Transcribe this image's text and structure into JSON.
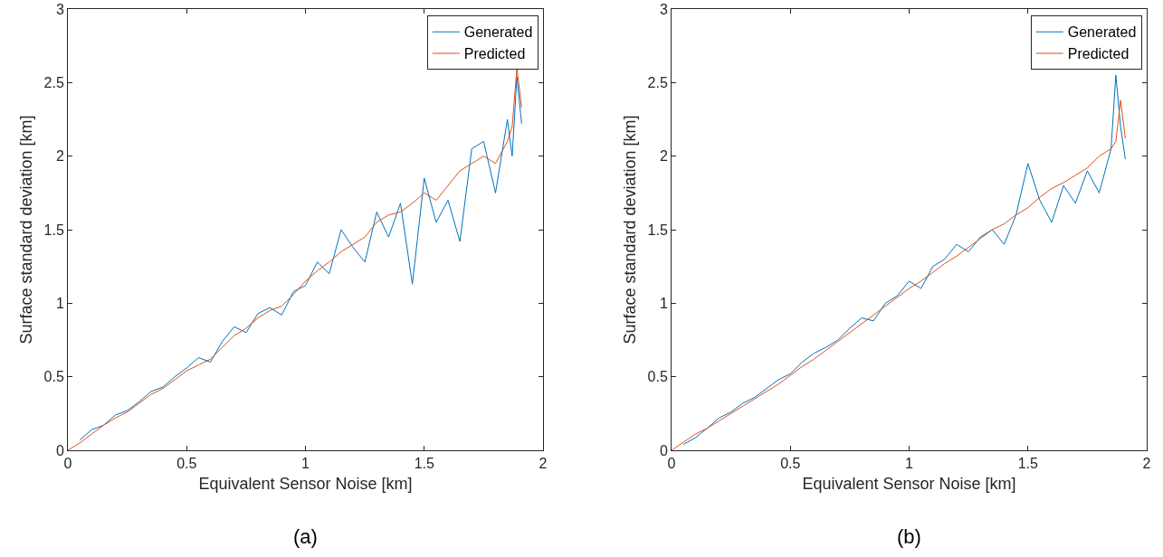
{
  "chart_data": [
    {
      "type": "line",
      "xlabel": "Equivalent Sensor Noise [km]",
      "ylabel": "Surface standard deviation [km]",
      "annotations": [
        "(a)"
      ],
      "xlim": [
        0,
        2
      ],
      "xticks": [
        0,
        0.5,
        1,
        1.5,
        2
      ],
      "ylim": [
        0,
        3
      ],
      "yticks": [
        0,
        0.5,
        1,
        1.5,
        2,
        2.5,
        3
      ],
      "legend": "top right",
      "grid": false,
      "marker": "none",
      "line_style": "solid",
      "x": [
        0,
        0.05,
        0.1,
        0.15,
        0.2,
        0.25,
        0.3,
        0.35,
        0.4,
        0.45,
        0.5,
        0.55,
        0.6,
        0.65,
        0.7,
        0.75,
        0.8,
        0.85,
        0.9,
        0.95,
        1,
        1.05,
        1.1,
        1.15,
        1.2,
        1.25,
        1.3,
        1.35,
        1.4,
        1.45,
        1.5,
        1.55,
        1.6,
        1.65,
        1.7,
        1.75,
        1.8,
        1.85,
        1.87,
        1.89,
        1.91
      ],
      "series": [
        {
          "name": "Generated",
          "color": "#0072bd",
          "values": [
            null,
            0.07,
            0.14,
            0.17,
            0.24,
            0.27,
            0.33,
            0.4,
            0.43,
            0.5,
            0.56,
            0.63,
            0.6,
            0.74,
            0.84,
            0.8,
            0.93,
            0.97,
            0.92,
            1.08,
            1.12,
            1.28,
            1.2,
            1.5,
            1.38,
            1.28,
            1.62,
            1.45,
            1.68,
            1.13,
            1.85,
            1.55,
            1.7,
            1.42,
            2.05,
            2.1,
            1.75,
            2.25,
            2,
            2.54,
            2.22
          ]
        },
        {
          "name": "Predicted",
          "color": "#d95319",
          "values": [
            0,
            0.05,
            0.11,
            0.17,
            0.22,
            0.26,
            0.32,
            0.38,
            0.42,
            0.48,
            0.54,
            0.58,
            0.62,
            0.7,
            0.78,
            0.83,
            0.9,
            0.95,
            0.98,
            1.06,
            1.15,
            1.22,
            1.28,
            1.35,
            1.4,
            1.45,
            1.55,
            1.6,
            1.62,
            1.68,
            1.75,
            1.7,
            1.8,
            1.9,
            1.95,
            2,
            1.95,
            2.1,
            2.2,
            2.6,
            2.33
          ]
        }
      ]
    },
    {
      "type": "line",
      "xlabel": "Equivalent Sensor Noise [km]",
      "ylabel": "Surface standard deviation [km]",
      "annotations": [
        "(b)"
      ],
      "xlim": [
        0,
        2
      ],
      "xticks": [
        0,
        0.5,
        1,
        1.5,
        2
      ],
      "ylim": [
        0,
        3
      ],
      "yticks": [
        0,
        0.5,
        1,
        1.5,
        2,
        2.5,
        3
      ],
      "legend": "top right",
      "grid": false,
      "marker": "none",
      "line_style": "solid",
      "x": [
        0,
        0.05,
        0.1,
        0.15,
        0.2,
        0.25,
        0.3,
        0.35,
        0.4,
        0.45,
        0.5,
        0.55,
        0.6,
        0.65,
        0.7,
        0.75,
        0.8,
        0.85,
        0.9,
        0.95,
        1,
        1.05,
        1.1,
        1.15,
        1.2,
        1.25,
        1.3,
        1.35,
        1.4,
        1.45,
        1.5,
        1.55,
        1.6,
        1.65,
        1.7,
        1.75,
        1.8,
        1.85,
        1.87,
        1.89,
        1.91
      ],
      "series": [
        {
          "name": "Generated",
          "color": "#0072bd",
          "values": [
            null,
            0.04,
            0.085,
            0.15,
            0.22,
            0.26,
            0.32,
            0.36,
            0.42,
            0.48,
            0.52,
            0.6,
            0.66,
            0.7,
            0.75,
            0.83,
            0.9,
            0.88,
            1,
            1.05,
            1.15,
            1.1,
            1.25,
            1.3,
            1.4,
            1.35,
            1.45,
            1.5,
            1.4,
            1.6,
            1.95,
            1.7,
            1.55,
            1.8,
            1.68,
            1.9,
            1.75,
            2.05,
            2.55,
            2.2,
            1.98
          ]
        },
        {
          "name": "Predicted",
          "color": "#d95319",
          "values": [
            0,
            0.055,
            0.11,
            0.15,
            0.2,
            0.25,
            0.3,
            0.35,
            0.4,
            0.45,
            0.51,
            0.57,
            0.62,
            0.68,
            0.74,
            0.8,
            0.86,
            0.92,
            0.98,
            1.04,
            1.1,
            1.15,
            1.21,
            1.27,
            1.32,
            1.38,
            1.44,
            1.5,
            1.54,
            1.6,
            1.65,
            1.72,
            1.78,
            1.82,
            1.87,
            1.92,
            2,
            2.05,
            2.1,
            2.38,
            2.12
          ]
        }
      ]
    }
  ]
}
